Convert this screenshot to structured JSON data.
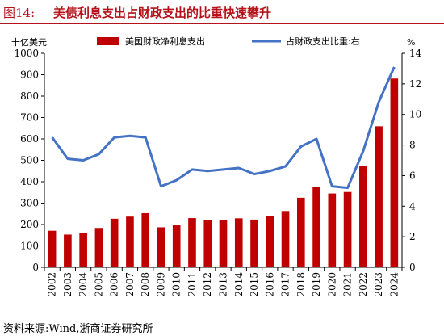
{
  "title": {
    "number": "图14:",
    "text": "美债利息支出占财政支出的比重快速攀升"
  },
  "source": "资料来源:Wind,浙商证券研究所",
  "colors": {
    "bar": "#c00000",
    "line": "#4472c4",
    "title": "#b5121b"
  },
  "chart_data": {
    "type": "bar+line",
    "categories": [
      "2002",
      "2003",
      "2004",
      "2005",
      "2006",
      "2007",
      "2008",
      "2009",
      "2010",
      "2011",
      "2012",
      "2013",
      "2014",
      "2015",
      "2016",
      "2017",
      "2018",
      "2019",
      "2020",
      "2021",
      "2022",
      "2023",
      "2024"
    ],
    "y_left_label": "十亿美元",
    "y_right_label": "%",
    "ylim_left": [
      0,
      1000
    ],
    "ylim_right": [
      0,
      14
    ],
    "y_left_ticks": [
      0,
      100,
      200,
      300,
      400,
      500,
      600,
      700,
      800,
      900,
      1000
    ],
    "y_right_ticks": [
      0,
      2,
      4,
      6,
      8,
      10,
      12,
      14
    ],
    "legend_position": "top",
    "series": [
      {
        "name": "美国财政净利息支出",
        "type": "bar",
        "axis": "left",
        "values": [
          171,
          153,
          160,
          184,
          227,
          237,
          253,
          187,
          196,
          230,
          220,
          221,
          229,
          223,
          240,
          263,
          325,
          375,
          345,
          352,
          475,
          659,
          882
        ]
      },
      {
        "name": "占财政支出比重:右",
        "type": "line",
        "axis": "right",
        "values": [
          8.5,
          7.1,
          7.0,
          7.4,
          8.5,
          8.6,
          8.5,
          5.3,
          5.7,
          6.4,
          6.3,
          6.4,
          6.5,
          6.1,
          6.3,
          6.6,
          7.9,
          8.4,
          5.3,
          5.2,
          7.6,
          10.8,
          13.1
        ]
      }
    ]
  }
}
